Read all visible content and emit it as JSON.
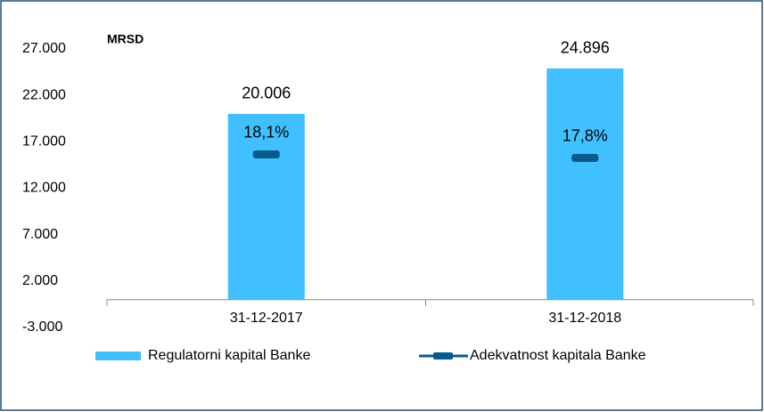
{
  "chart_data": {
    "type": "bar",
    "annotation": "MRSD",
    "categories": [
      "31-12-2017",
      "31-12-2018"
    ],
    "series": [
      {
        "name": "Regulatorni kapital Banke",
        "color": "#40c0ff",
        "values": [
          20006,
          24896
        ],
        "value_labels": [
          "20.006",
          "24.896"
        ]
      },
      {
        "name": "Adekvatnost kapitala Banke",
        "color": "#0b5a8c",
        "values": [
          18.1,
          17.8
        ],
        "value_labels": [
          "18,1%",
          "17,8%"
        ],
        "axis": "y2"
      }
    ],
    "ylim": [
      -3000,
      27000
    ],
    "yticks": [
      {
        "value": -3000,
        "label": "-3.000"
      },
      {
        "value": 2000,
        "label": "2.000"
      },
      {
        "value": 7000,
        "label": "7.000"
      },
      {
        "value": 12000,
        "label": "12.000"
      },
      {
        "value": 17000,
        "label": "17.000"
      },
      {
        "value": 22000,
        "label": "22.000"
      },
      {
        "value": 27000,
        "label": "27.000"
      }
    ],
    "y2lim": [
      3.5,
      27
    ],
    "legend": "bottom",
    "grid": false
  }
}
